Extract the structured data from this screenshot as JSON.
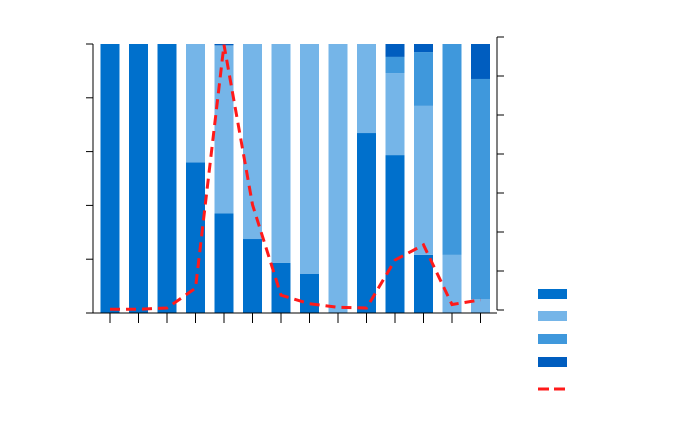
{
  "chart_data": {
    "type": "bar",
    "stacked": true,
    "secondary_line": true,
    "categories": [
      "",
      "",
      "",
      "",
      "",
      "",
      "",
      "",
      "",
      "",
      "",
      "",
      "",
      ""
    ],
    "ylim": [
      0,
      100
    ],
    "y2lim": [
      0,
      7
    ],
    "grid": false,
    "legend_placement": "right",
    "series": [
      {
        "color": "#0070cc",
        "values": [
          100,
          100,
          100,
          56,
          37,
          27.5,
          18.6,
          14.5,
          0,
          66.9,
          58.7,
          21.6,
          0,
          0
        ]
      },
      {
        "color": "#75b5e8",
        "values": [
          0,
          0,
          0,
          44,
          62.5,
          72.5,
          81.4,
          85.5,
          100,
          33.1,
          30.5,
          55.4,
          21.6,
          5.2
        ]
      },
      {
        "color": "#3f98dc",
        "values": [
          0,
          0,
          0,
          0,
          0,
          0,
          0,
          0,
          0,
          0,
          6,
          20,
          78.4,
          81.8
        ]
      },
      {
        "color": "#005dbf",
        "values": [
          0,
          0,
          0,
          0,
          0.5,
          0,
          0,
          0,
          0,
          0,
          4.8,
          3,
          0,
          13
        ]
      }
    ],
    "line": {
      "color": "#ff1a1a",
      "style": "dashed",
      "axis": "right",
      "values": [
        0.02,
        0.02,
        0.05,
        0.56,
        6.8,
        2.7,
        0.38,
        0.16,
        0.07,
        0.05,
        1.28,
        1.67,
        0.14,
        0.26
      ]
    }
  }
}
